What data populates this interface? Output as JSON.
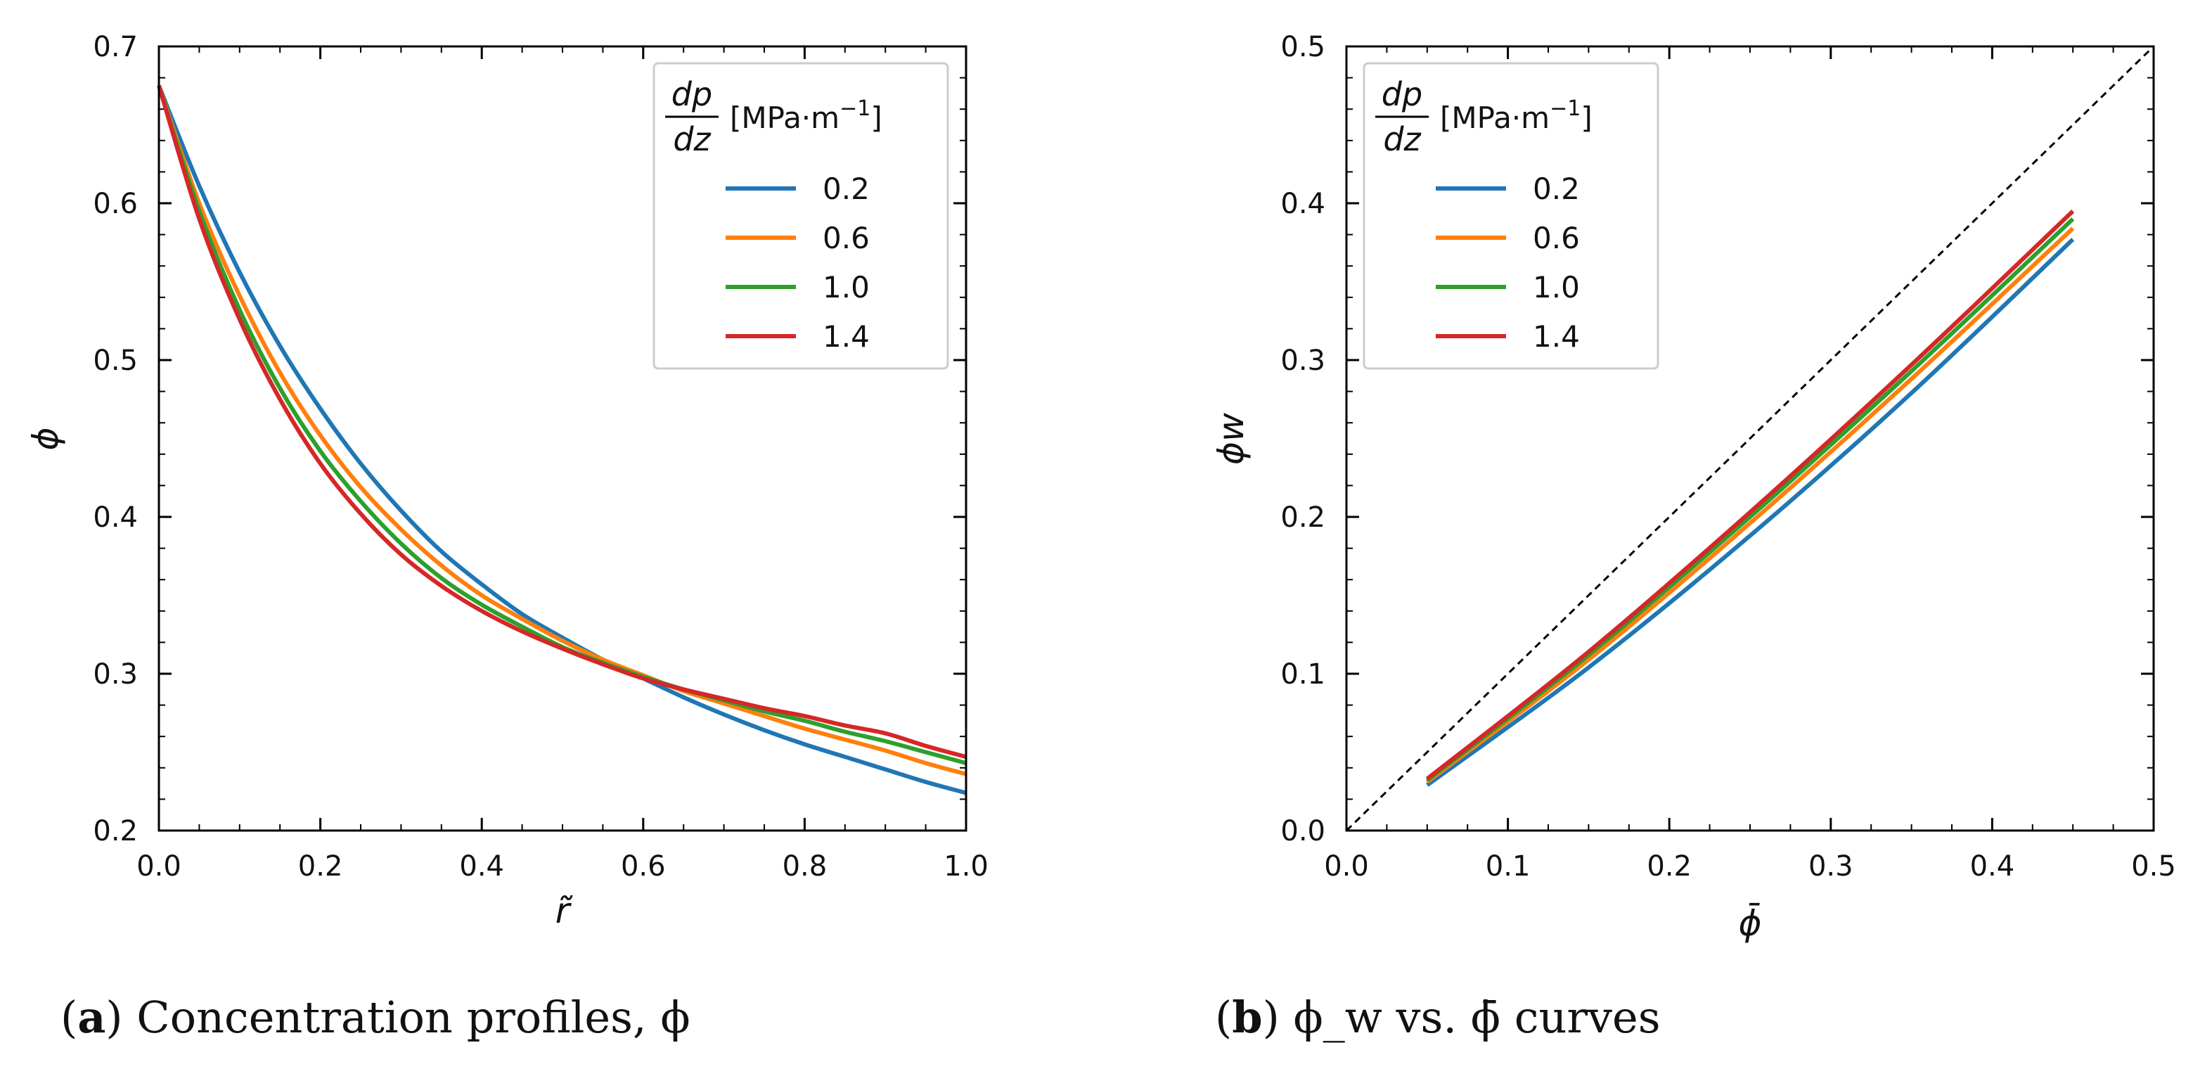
{
  "chart_data": [
    {
      "type": "line",
      "panel": "a",
      "caption": {
        "letter": "a",
        "text": "Concentration profiles, ϕ"
      },
      "xlabel": "r̃",
      "ylabel": "ϕ",
      "xlim": [
        0.0,
        1.0
      ],
      "ylim": [
        0.2,
        0.7
      ],
      "xticks": [
        "0.0",
        "0.2",
        "0.4",
        "0.6",
        "0.8",
        "1.0"
      ],
      "yticks": [
        "0.2",
        "0.3",
        "0.4",
        "0.5",
        "0.6",
        "0.7"
      ],
      "legend": {
        "title_num": "dp",
        "title_den": "dz",
        "title_unit": "[MPa·m",
        "title_exp": "−1",
        "title_close": "]",
        "placement": "top-right"
      },
      "x": [
        0.0,
        0.05,
        0.1,
        0.15,
        0.2,
        0.25,
        0.3,
        0.35,
        0.4,
        0.45,
        0.5,
        0.55,
        0.6,
        0.65,
        0.7,
        0.75,
        0.8,
        0.85,
        0.9,
        0.95,
        1.0
      ],
      "series": [
        {
          "name": "0.2",
          "color": "#1f77b4",
          "values": [
            0.675,
            0.611,
            0.556,
            0.509,
            0.469,
            0.434,
            0.404,
            0.378,
            0.357,
            0.338,
            0.323,
            0.309,
            0.297,
            0.285,
            0.274,
            0.264,
            0.255,
            0.247,
            0.239,
            0.231,
            0.224
          ]
        },
        {
          "name": "0.6",
          "color": "#ff7f0e",
          "values": [
            0.675,
            0.6,
            0.541,
            0.492,
            0.452,
            0.419,
            0.392,
            0.369,
            0.35,
            0.335,
            0.321,
            0.309,
            0.299,
            0.289,
            0.281,
            0.273,
            0.265,
            0.258,
            0.251,
            0.243,
            0.236
          ]
        },
        {
          "name": "1.0",
          "color": "#2ca02c",
          "values": [
            0.675,
            0.595,
            0.532,
            0.482,
            0.442,
            0.41,
            0.383,
            0.361,
            0.344,
            0.33,
            0.317,
            0.307,
            0.298,
            0.29,
            0.283,
            0.276,
            0.27,
            0.263,
            0.257,
            0.25,
            0.243
          ]
        },
        {
          "name": "1.4",
          "color": "#d62728",
          "values": [
            0.675,
            0.59,
            0.526,
            0.475,
            0.434,
            0.402,
            0.376,
            0.356,
            0.34,
            0.327,
            0.316,
            0.306,
            0.297,
            0.29,
            0.284,
            0.278,
            0.273,
            0.267,
            0.262,
            0.254,
            0.247
          ]
        }
      ]
    },
    {
      "type": "line",
      "panel": "b",
      "caption": {
        "letter": "b",
        "text": "ϕ_w vs. ϕ̄ curves"
      },
      "xlabel": "ϕ̄",
      "ylabel": "ϕw",
      "xlim": [
        0.0,
        0.5
      ],
      "ylim": [
        0.0,
        0.5
      ],
      "xticks": [
        "0.0",
        "0.1",
        "0.2",
        "0.3",
        "0.4",
        "0.5"
      ],
      "yticks": [
        "0.0",
        "0.1",
        "0.2",
        "0.3",
        "0.4",
        "0.5"
      ],
      "reference_line": "y = x (dashed)",
      "legend": {
        "title_num": "dp",
        "title_den": "dz",
        "title_unit": "[MPa·m",
        "title_exp": "−1",
        "title_close": "]",
        "placement": "top-left"
      },
      "x": [
        0.05,
        0.15,
        0.25,
        0.35,
        0.45
      ],
      "series": [
        {
          "name": "0.2",
          "color": "#1f77b4",
          "values": [
            0.029,
            0.104,
            0.188,
            0.279,
            0.377
          ]
        },
        {
          "name": "0.6",
          "color": "#ff7f0e",
          "values": [
            0.031,
            0.109,
            0.196,
            0.288,
            0.384
          ]
        },
        {
          "name": "1.0",
          "color": "#2ca02c",
          "values": [
            0.032,
            0.112,
            0.2,
            0.293,
            0.39
          ]
        },
        {
          "name": "1.4",
          "color": "#d62728",
          "values": [
            0.033,
            0.114,
            0.203,
            0.297,
            0.395
          ]
        }
      ]
    }
  ]
}
